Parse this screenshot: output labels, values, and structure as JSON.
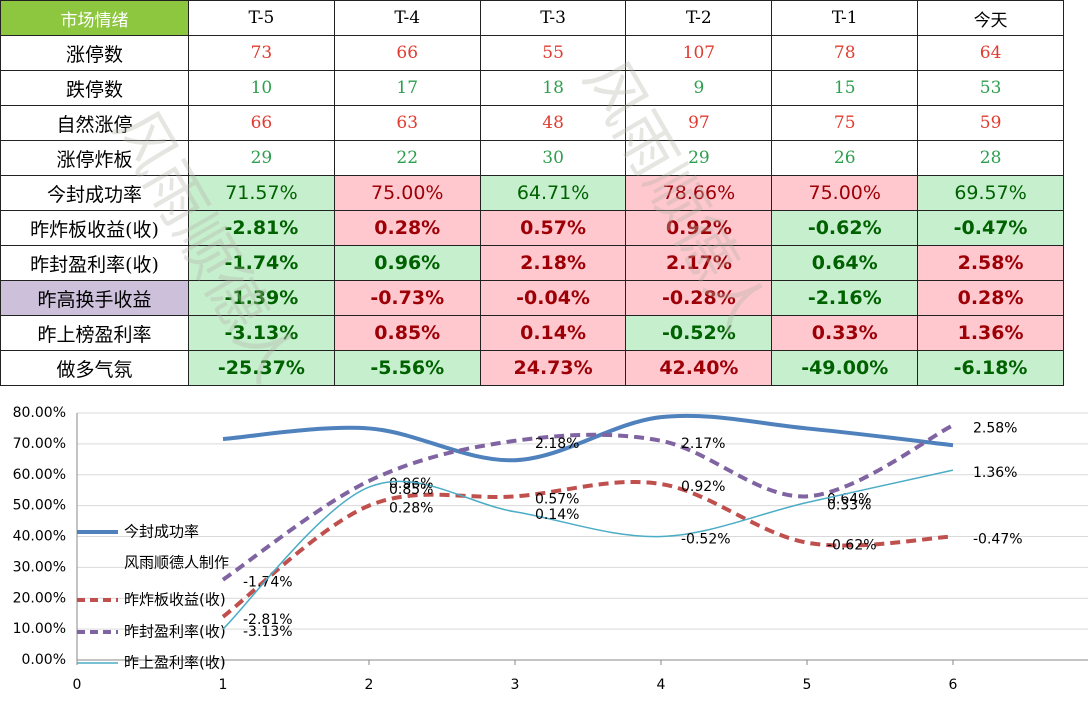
{
  "table": {
    "header": [
      "市场情绪",
      "T-5",
      "T-4",
      "T-3",
      "T-2",
      "T-1",
      "今天"
    ],
    "rows": [
      {
        "label": "涨停数",
        "cells": [
          "73",
          "66",
          "55",
          "107",
          "78",
          "64"
        ],
        "color": "#e03c31"
      },
      {
        "label": "跌停数",
        "cells": [
          "10",
          "17",
          "18",
          "9",
          "15",
          "53"
        ],
        "color": "#2e9e4f"
      },
      {
        "label": "自然涨停",
        "cells": [
          "66",
          "63",
          "48",
          "97",
          "75",
          "59"
        ],
        "color": "#e03c31"
      },
      {
        "label": "涨停炸板",
        "cells": [
          "29",
          "22",
          "30",
          "29",
          "26",
          "28"
        ],
        "color": "#2e9e4f"
      },
      {
        "label": "今封成功率",
        "cells": [
          "71.57%",
          "75.00%",
          "64.71%",
          "78.66%",
          "75.00%",
          "69.57%"
        ],
        "bg": [
          "#c6efce",
          "#ffc7ce",
          "#c6efce",
          "#ffc7ce",
          "#ffc7ce",
          "#c6efce"
        ],
        "bold": false
      },
      {
        "label": "昨炸板收益(收)",
        "cells": [
          "-2.81%",
          "0.28%",
          "0.57%",
          "0.92%",
          "-0.62%",
          "-0.47%"
        ],
        "bg": [
          "#c6efce",
          "#ffc7ce",
          "#ffc7ce",
          "#ffc7ce",
          "#c6efce",
          "#c6efce"
        ],
        "bold": true
      },
      {
        "label": "昨封盈利率(收)",
        "cells": [
          "-1.74%",
          "0.96%",
          "2.18%",
          "2.17%",
          "0.64%",
          "2.58%"
        ],
        "bg": [
          "#c6efce",
          "#c6efce",
          "#ffc7ce",
          "#ffc7ce",
          "#c6efce",
          "#ffc7ce"
        ],
        "bold": true
      },
      {
        "label": "昨高换手收益",
        "label_bg": "#ccc0da",
        "cells": [
          "-1.39%",
          "-0.73%",
          "-0.04%",
          "-0.28%",
          "-2.16%",
          "0.28%"
        ],
        "bg": [
          "#c6efce",
          "#ffc7ce",
          "#ffc7ce",
          "#ffc7ce",
          "#c6efce",
          "#ffc7ce"
        ],
        "bold": true
      },
      {
        "label": "昨上榜盈利率",
        "cells": [
          "-3.13%",
          "0.85%",
          "0.14%",
          "-0.52%",
          "0.33%",
          "1.36%"
        ],
        "bg": [
          "#c6efce",
          "#ffc7ce",
          "#ffc7ce",
          "#c6efce",
          "#ffc7ce",
          "#ffc7ce"
        ],
        "bold": true
      },
      {
        "label": "做多气氛",
        "cells": [
          "-25.37%",
          "-5.56%",
          "24.73%",
          "42.40%",
          "-49.00%",
          "-6.18%"
        ],
        "bg": [
          "#c6efce",
          "#c6efce",
          "#ffc7ce",
          "#ffc7ce",
          "#c6efce",
          "#c6efce"
        ],
        "bold": true
      }
    ]
  },
  "watermark": "风雨顺德人",
  "chart_data": {
    "type": "line",
    "x": [
      1,
      2,
      3,
      4,
      5,
      6
    ],
    "xlim": [
      0,
      7
    ],
    "xticks": [
      0,
      1,
      2,
      3,
      4,
      5,
      6
    ],
    "ylim": [
      0,
      80
    ],
    "yticks": [
      {
        "value": 0,
        "label": "0.00%"
      },
      {
        "value": 10,
        "label": "10.00%"
      },
      {
        "value": 20,
        "label": "20.00%"
      },
      {
        "value": 30,
        "label": "30.00%"
      },
      {
        "value": 40,
        "label": "40.00%"
      },
      {
        "value": 50,
        "label": "50.00%"
      },
      {
        "value": 60,
        "label": "60.00%"
      },
      {
        "value": 70,
        "label": "70.00%"
      },
      {
        "value": 80,
        "label": "80.00%"
      }
    ],
    "grid": true,
    "legend_note": "风雨顺德人制作",
    "series": [
      {
        "name": "今封成功率",
        "color": "#4f81bd",
        "width": 4,
        "dash": false,
        "values": [
          71.57,
          75,
          64.71,
          78.66,
          75,
          69.57
        ]
      },
      {
        "name": "昨炸板收益(收)",
        "color": "#c0504d",
        "width": 4,
        "dash": true,
        "values": [
          14,
          50,
          53,
          57,
          38,
          40
        ],
        "point_texts": [
          "-2.81%",
          "0.28%",
          "0.57%",
          "0.92%",
          "-0.62%",
          "-0.47%"
        ]
      },
      {
        "name": "昨封盈利率(收)",
        "color": "#8064a2",
        "width": 4,
        "dash": true,
        "values": [
          26,
          58,
          71,
          71,
          53,
          76
        ],
        "point_texts": [
          "-1.74%",
          "0.96%",
          "2.18%",
          "2.17%",
          "0.64%",
          "2.58%"
        ]
      },
      {
        "name": "昨上盈利率(收)",
        "color": "#4bacc6",
        "width": 1.5,
        "dash": false,
        "values": [
          10,
          56,
          48,
          40,
          51,
          61.5
        ],
        "point_texts": [
          "-3.13%",
          "0.85%",
          "0.14%",
          "-0.52%",
          "0.33%",
          "1.36%"
        ]
      }
    ]
  }
}
